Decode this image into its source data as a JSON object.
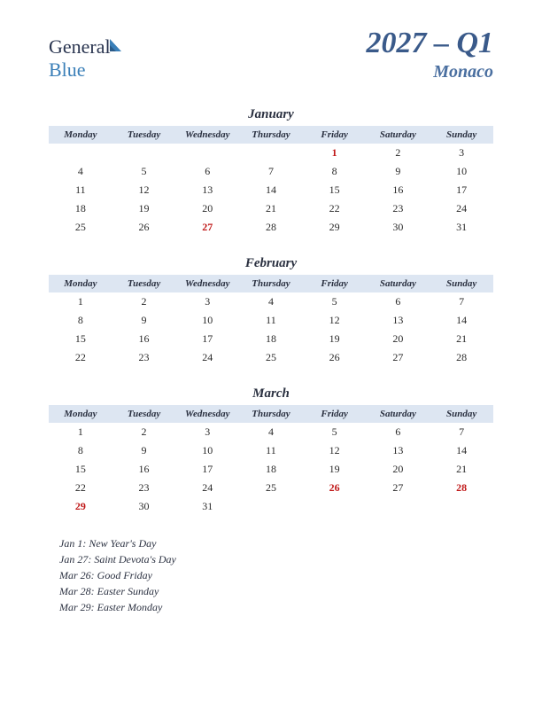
{
  "logo": {
    "part1": "General",
    "part2": "Blue"
  },
  "title": "2027 – Q1",
  "country": "Monaco",
  "day_headers": [
    "Monday",
    "Tuesday",
    "Wednesday",
    "Thursday",
    "Friday",
    "Saturday",
    "Sunday"
  ],
  "colors": {
    "header_bg": "#dde6f2",
    "title_color": "#3a5a8a",
    "country_color": "#4a6fa0",
    "text_color": "#2a3040",
    "holiday_color": "#c01818",
    "logo_dark": "#2a3550",
    "logo_blue": "#3a7fb8"
  },
  "months": [
    {
      "name": "January",
      "weeks": [
        [
          "",
          "",
          "",
          "",
          "1",
          "2",
          "3"
        ],
        [
          "4",
          "5",
          "6",
          "7",
          "8",
          "9",
          "10"
        ],
        [
          "11",
          "12",
          "13",
          "14",
          "15",
          "16",
          "17"
        ],
        [
          "18",
          "19",
          "20",
          "21",
          "22",
          "23",
          "24"
        ],
        [
          "25",
          "26",
          "27",
          "28",
          "29",
          "30",
          "31"
        ]
      ],
      "holidays": [
        "1",
        "27"
      ]
    },
    {
      "name": "February",
      "weeks": [
        [
          "1",
          "2",
          "3",
          "4",
          "5",
          "6",
          "7"
        ],
        [
          "8",
          "9",
          "10",
          "11",
          "12",
          "13",
          "14"
        ],
        [
          "15",
          "16",
          "17",
          "18",
          "19",
          "20",
          "21"
        ],
        [
          "22",
          "23",
          "24",
          "25",
          "26",
          "27",
          "28"
        ]
      ],
      "holidays": []
    },
    {
      "name": "March",
      "weeks": [
        [
          "1",
          "2",
          "3",
          "4",
          "5",
          "6",
          "7"
        ],
        [
          "8",
          "9",
          "10",
          "11",
          "12",
          "13",
          "14"
        ],
        [
          "15",
          "16",
          "17",
          "18",
          "19",
          "20",
          "21"
        ],
        [
          "22",
          "23",
          "24",
          "25",
          "26",
          "27",
          "28"
        ],
        [
          "29",
          "30",
          "31",
          "",
          "",
          "",
          ""
        ]
      ],
      "holidays": [
        "26",
        "28",
        "29"
      ]
    }
  ],
  "holiday_list": [
    "Jan 1: New Year's Day",
    "Jan 27: Saint Devota's Day",
    "Mar 26: Good Friday",
    "Mar 28: Easter Sunday",
    "Mar 29: Easter Monday"
  ]
}
